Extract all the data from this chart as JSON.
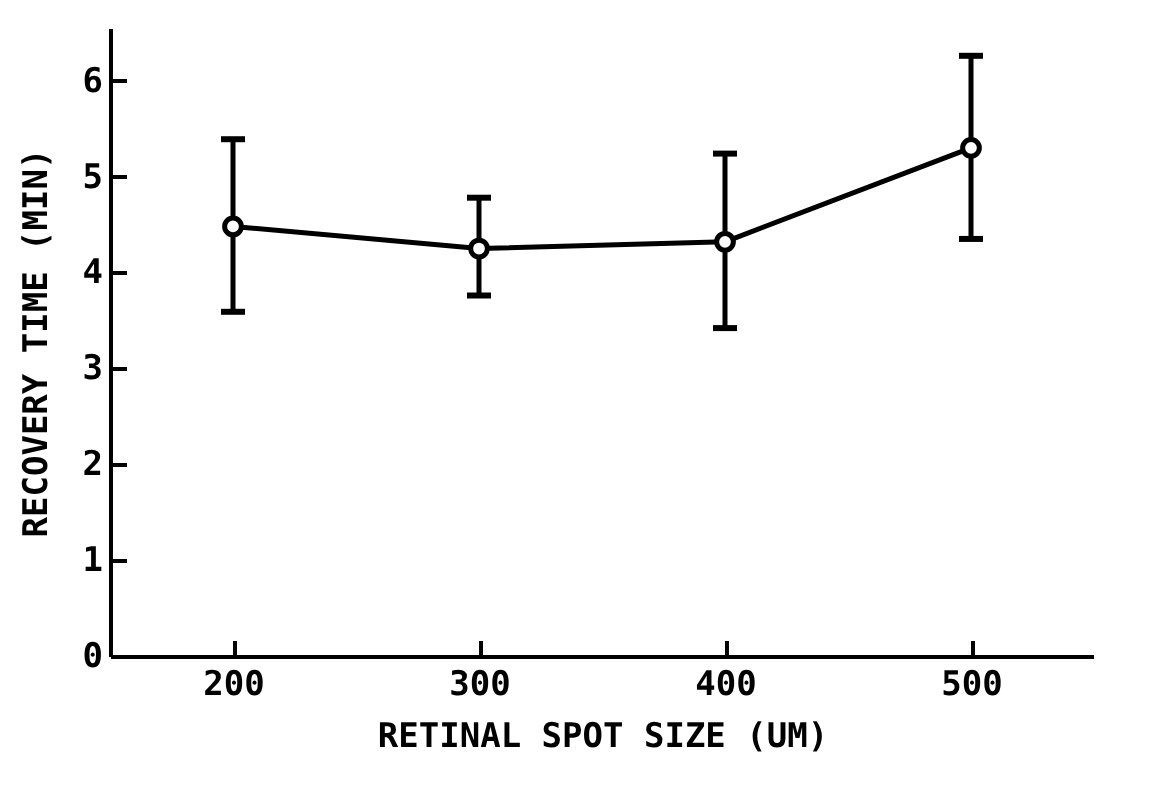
{
  "chart_data": {
    "type": "line",
    "xlabel": "RETINAL SPOT SIZE (UM)",
    "ylabel": "RECOVERY TIME (MIN)",
    "x": [
      200,
      300,
      400,
      500
    ],
    "series": [
      {
        "color": "#000000",
        "values": [
          4.48,
          4.25,
          4.32,
          5.3
        ],
        "errors": [
          [
            3.59,
            5.39
          ],
          [
            3.76,
            4.78
          ],
          [
            3.42,
            5.24
          ],
          [
            4.35,
            6.26
          ]
        ]
      }
    ],
    "xlim": [
      150,
      550
    ],
    "xticks": [
      200,
      300,
      400,
      500
    ],
    "ylim": [
      0,
      6.55
    ],
    "yticks": [
      0,
      1,
      2,
      3,
      4,
      5,
      6
    ],
    "grid": false,
    "marker": "circle",
    "line_style": "solid"
  }
}
